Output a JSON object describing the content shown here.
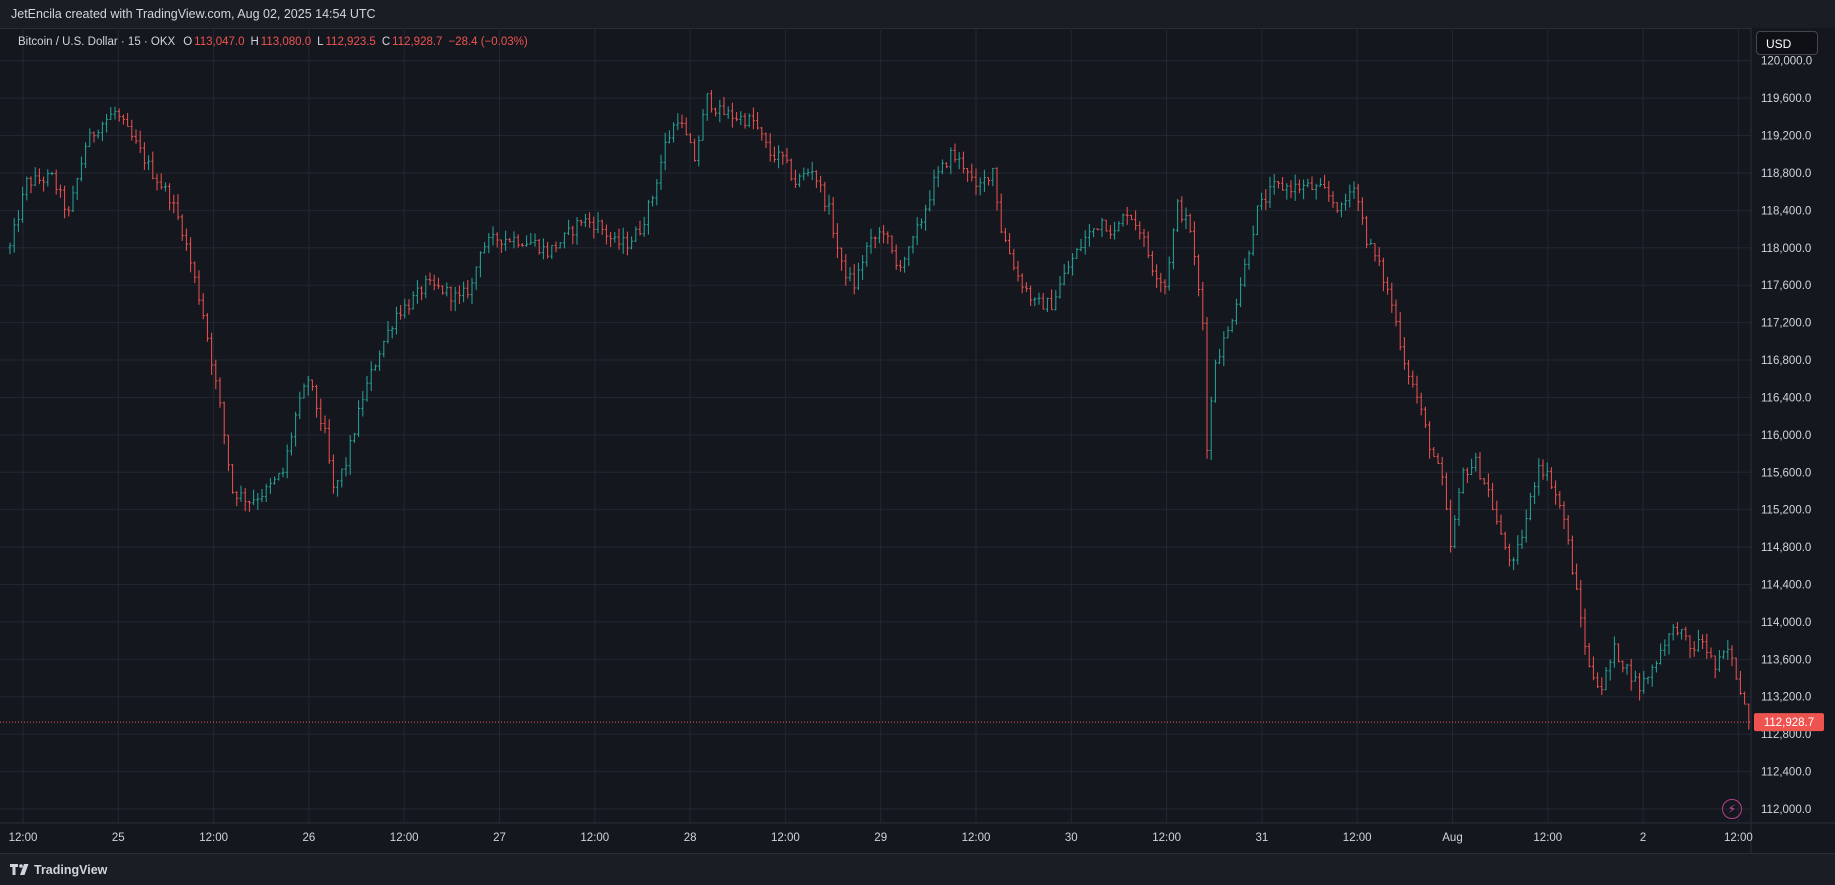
{
  "header": {
    "text": "JetEncila created with TradingView.com, Aug 02, 2025 14:54 UTC"
  },
  "legend": {
    "symbol": "Bitcoin / U.S. Dollar · 15 · OKX",
    "o_label": "O",
    "o_value": "113,047.0",
    "h_label": "H",
    "h_value": "113,080.0",
    "l_label": "L",
    "l_value": "112,923.5",
    "c_label": "C",
    "c_value": "112,928.7",
    "change": "−28.4 (−0.03%)"
  },
  "currency_button": "USD",
  "brand": "TradingView",
  "colors": {
    "background": "#15171f",
    "up": "#26a69a",
    "down": "#ef5350",
    "grid": "#232632",
    "text": "#d1d4dc"
  },
  "icons": [
    "tradingview-logo-icon",
    "lightning-icon"
  ],
  "chart_data": {
    "type": "ohlc",
    "title": "",
    "xlabel": "",
    "ylabel": "",
    "ylim": [
      111850,
      120350
    ],
    "grid": true,
    "y_ticks": [
      "120,000.0",
      "119,600.0",
      "119,200.0",
      "118,800.0",
      "118,400.0",
      "118,000.0",
      "117,600.0",
      "117,200.0",
      "116,800.0",
      "116,400.0",
      "116,000.0",
      "115,600.0",
      "115,200.0",
      "114,800.0",
      "114,400.0",
      "114,000.0",
      "113,600.0",
      "113,200.0",
      "112,800.0",
      "112,400.0",
      "112,000.0"
    ],
    "x_ticks": [
      "12:00",
      "25",
      "12:00",
      "26",
      "12:00",
      "27",
      "12:00",
      "28",
      "12:00",
      "29",
      "12:00",
      "30",
      "12:00",
      "31",
      "12:00",
      "Aug",
      "12:00",
      "2",
      "12:00"
    ],
    "last_price": 112928.7,
    "last_price_label": "112,928.7",
    "price_path": [
      [
        0,
        118000
      ],
      [
        4,
        118700
      ],
      [
        10,
        118750
      ],
      [
        14,
        118350
      ],
      [
        18,
        119100
      ],
      [
        21,
        119300
      ],
      [
        25,
        119450
      ],
      [
        30,
        119100
      ],
      [
        34,
        118800
      ],
      [
        38,
        118550
      ],
      [
        41,
        118200
      ],
      [
        46,
        117300
      ],
      [
        50,
        116300
      ],
      [
        53,
        115400
      ],
      [
        57,
        115300
      ],
      [
        61,
        115400
      ],
      [
        65,
        115600
      ],
      [
        68,
        116200
      ],
      [
        71,
        116600
      ],
      [
        75,
        116000
      ],
      [
        77,
        115400
      ],
      [
        80,
        115700
      ],
      [
        84,
        116400
      ],
      [
        88,
        116900
      ],
      [
        92,
        117300
      ],
      [
        95,
        117400
      ],
      [
        99,
        117600
      ],
      [
        103,
        117550
      ],
      [
        107,
        117450
      ],
      [
        110,
        117600
      ],
      [
        112,
        118000
      ],
      [
        116,
        118100
      ],
      [
        120,
        118100
      ],
      [
        125,
        118050
      ],
      [
        128,
        117950
      ],
      [
        132,
        118100
      ],
      [
        136,
        118300
      ],
      [
        140,
        118250
      ],
      [
        144,
        118050
      ],
      [
        147,
        118050
      ],
      [
        150,
        118200
      ],
      [
        153,
        118550
      ],
      [
        156,
        119100
      ],
      [
        159,
        119400
      ],
      [
        163,
        118950
      ],
      [
        166,
        119600
      ],
      [
        169,
        119450
      ],
      [
        173,
        119400
      ],
      [
        177,
        119350
      ],
      [
        181,
        119000
      ],
      [
        184,
        118950
      ],
      [
        187,
        118700
      ],
      [
        191,
        118850
      ],
      [
        195,
        118400
      ],
      [
        198,
        117800
      ],
      [
        201,
        117600
      ],
      [
        204,
        118000
      ],
      [
        208,
        118200
      ],
      [
        211,
        117800
      ],
      [
        214,
        117950
      ],
      [
        217,
        118300
      ],
      [
        220,
        118700
      ],
      [
        224,
        119000
      ],
      [
        228,
        118850
      ],
      [
        230,
        118600
      ],
      [
        234,
        118850
      ],
      [
        236,
        118200
      ],
      [
        240,
        117700
      ],
      [
        244,
        117400
      ],
      [
        248,
        117400
      ],
      [
        252,
        117800
      ],
      [
        256,
        118100
      ],
      [
        260,
        118300
      ],
      [
        263,
        118150
      ],
      [
        266,
        118400
      ],
      [
        269,
        118200
      ],
      [
        272,
        117800
      ],
      [
        275,
        117600
      ],
      [
        278,
        118450
      ],
      [
        281,
        118200
      ],
      [
        284,
        117200
      ],
      [
        285,
        115900
      ],
      [
        287,
        116800
      ],
      [
        290,
        117100
      ],
      [
        294,
        117800
      ],
      [
        297,
        118400
      ],
      [
        301,
        118650
      ],
      [
        305,
        118650
      ],
      [
        309,
        118650
      ],
      [
        313,
        118600
      ],
      [
        317,
        118400
      ],
      [
        320,
        118700
      ],
      [
        323,
        118100
      ],
      [
        326,
        117800
      ],
      [
        329,
        117400
      ],
      [
        332,
        116800
      ],
      [
        335,
        116400
      ],
      [
        338,
        115900
      ],
      [
        341,
        115500
      ],
      [
        343,
        114800
      ],
      [
        346,
        115600
      ],
      [
        349,
        115700
      ],
      [
        352,
        115400
      ],
      [
        355,
        114900
      ],
      [
        358,
        114600
      ],
      [
        361,
        115100
      ],
      [
        364,
        115700
      ],
      [
        367,
        115500
      ],
      [
        370,
        115100
      ],
      [
        373,
        114300
      ],
      [
        376,
        113500
      ],
      [
        379,
        113300
      ],
      [
        382,
        113700
      ],
      [
        385,
        113500
      ],
      [
        388,
        113300
      ],
      [
        391,
        113500
      ],
      [
        394,
        113800
      ],
      [
        397,
        113950
      ],
      [
        400,
        113700
      ],
      [
        403,
        113800
      ],
      [
        406,
        113500
      ],
      [
        409,
        113700
      ],
      [
        412,
        113300
      ],
      [
        414,
        112929
      ]
    ]
  }
}
